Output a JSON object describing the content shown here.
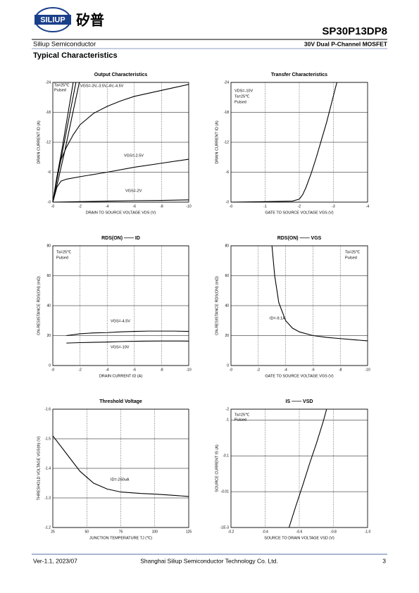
{
  "header": {
    "logo_text": "SILIUP",
    "logo_cn": "矽普",
    "part_number": "SP30P13DP8",
    "company": "Siliup Semiconductor",
    "subtitle": "30V Dual P-Channel MOSFET",
    "section": "Typical Characteristics"
  },
  "footer": {
    "version": "Ver-1.1, 2023/07",
    "company": "Shanghai Siliup Semiconductor Technology Co. Ltd.",
    "page": "3"
  },
  "chart_data": [
    {
      "type": "line",
      "title": "Output Characteristics",
      "x_label": "DRAIN TO SOURCE VOLTAGE   VDS   (V)",
      "y_label": "DRAIN CURRENT   ID   (A)",
      "xlim": [
        0,
        -10
      ],
      "xticks": [
        {
          "value": 0,
          "label": "-0"
        },
        -2,
        -4,
        -6,
        -8,
        -10
      ],
      "ylim": [
        0,
        -24
      ],
      "yticks": [
        {
          "value": 0,
          "label": "-0"
        },
        -6,
        -12,
        -18,
        -24
      ],
      "grid": true,
      "annotations": [
        "Ta=25℃",
        "Pulsed",
        "VGS=-3V,-3.5V,-4V,-4.5V",
        "VGS=-2.5V",
        "VGS=-2V"
      ],
      "series": [
        {
          "color": "#000000",
          "x": [
            0,
            -0.3,
            -0.7,
            -1.1,
            -1.5
          ],
          "values": [
            0,
            -5,
            -11,
            -17.5,
            -24
          ]
        },
        {
          "color": "#000000",
          "x": [
            0,
            -0.3,
            -0.7,
            -1.2,
            -1.7
          ],
          "values": [
            0,
            -4.5,
            -10,
            -17,
            -24
          ]
        },
        {
          "color": "#000000",
          "x": [
            0,
            -0.4,
            -0.9,
            -1.4,
            -1.95
          ],
          "values": [
            0,
            -4.5,
            -10.5,
            -17,
            -24
          ]
        },
        {
          "color": "#000000",
          "x": [
            0,
            -0.3,
            -0.6,
            -1,
            -1.5,
            -2,
            -3,
            -4,
            -5,
            -6,
            -7,
            -8,
            -9,
            -10
          ],
          "values": [
            0,
            -5,
            -8.5,
            -11,
            -13.5,
            -15.5,
            -17.8,
            -19.2,
            -20.3,
            -21.2,
            -21.8,
            -22.4,
            -23,
            -23.6
          ]
        },
        {
          "color": "#000000",
          "x": [
            0,
            -0.3,
            -0.6,
            -1,
            -2,
            -4,
            -6,
            -8,
            -10
          ],
          "values": [
            0,
            -3,
            -4.2,
            -4.6,
            -5.1,
            -6,
            -7,
            -7.8,
            -8.6
          ]
        },
        {
          "color": "#000000",
          "x": [
            0,
            -2,
            -4,
            -6,
            -8,
            -10
          ],
          "values": [
            0,
            -0.1,
            -0.2,
            -0.3,
            -0.35,
            -0.45
          ]
        }
      ]
    },
    {
      "type": "line",
      "title": "Transfer Characteristics",
      "x_label": "GATE TO SOURCE VOLTAGE   VGS   (V)",
      "y_label": "DRAIN CURRENT   ID   (A)",
      "xlim": [
        0,
        -4
      ],
      "xticks": [
        {
          "value": 0,
          "label": "-0"
        },
        -1,
        -2,
        -3,
        -4
      ],
      "ylim": [
        0,
        -24
      ],
      "yticks": [
        {
          "value": 0,
          "label": "-0"
        },
        -6,
        -12,
        -18,
        -24
      ],
      "grid": true,
      "annotations": [
        "VDS=-10V",
        "Ta=25℃",
        "Pulsed"
      ],
      "series": [
        {
          "color": "#000000",
          "x": [
            0,
            -1,
            -1.8,
            -2,
            -2.1,
            -2.2,
            -2.35,
            -2.5,
            -2.65,
            -2.8,
            -2.95,
            -3.1
          ],
          "values": [
            0,
            -0.1,
            -0.2,
            -0.6,
            -1.5,
            -3,
            -5.8,
            -9,
            -12.5,
            -16,
            -20,
            -24
          ]
        }
      ]
    },
    {
      "type": "line",
      "title": "RDS(ON) —— ID",
      "x_label": "DRAIN CURRENT   ID   (A)",
      "y_label": "ON-RESISTANCE   RDS(ON)   (mΩ)",
      "xlim": [
        0,
        -10
      ],
      "xticks": [
        {
          "value": 0,
          "label": "-0"
        },
        -2,
        -4,
        -6,
        -8,
        -10
      ],
      "ylim": [
        0,
        80
      ],
      "yticks": [
        0,
        20,
        40,
        60,
        80
      ],
      "grid": true,
      "annotations": [
        "Ta=25℃",
        "Pulsed",
        "VGS=-4.5V",
        "VGS=-10V"
      ],
      "series": [
        {
          "color": "#000000",
          "x": [
            -1,
            -2,
            -3,
            -4,
            -5,
            -6,
            -7,
            -8,
            -9,
            -10
          ],
          "values": [
            20,
            21.2,
            21.8,
            22,
            22.5,
            22.8,
            23,
            23,
            23,
            22.8
          ]
        },
        {
          "color": "#000000",
          "x": [
            -1,
            -2,
            -3,
            -4,
            -5,
            -6,
            -7,
            -8,
            -9,
            -10
          ],
          "values": [
            15,
            15.3,
            15.5,
            15.7,
            16,
            16.2,
            16.3,
            16.4,
            16.4,
            16.3
          ]
        }
      ]
    },
    {
      "type": "line",
      "title": "RDS(ON) —— VGS",
      "x_label": "GATE TO SOURCE VOLTAGE   VGS   (V)",
      "y_label": "ON-RESISTANCE   RDS(ON)   (mΩ)",
      "xlim": [
        0,
        -10
      ],
      "xticks": [
        {
          "value": 0,
          "label": "-0"
        },
        -2,
        -4,
        -6,
        -8,
        -10
      ],
      "ylim": [
        0,
        80
      ],
      "yticks": [
        0,
        20,
        40,
        60,
        80
      ],
      "grid": true,
      "annotations": [
        "Ta=25℃",
        "Pulsed",
        "ID=-9.1A"
      ],
      "series": [
        {
          "color": "#000000",
          "x": [
            -3,
            -3.2,
            -3.5,
            -4,
            -4.5,
            -5,
            -6,
            -7,
            -8,
            -9,
            -10
          ],
          "values": [
            80,
            60,
            42,
            30,
            25,
            22.5,
            20,
            18.8,
            18,
            17.2,
            16.5
          ]
        }
      ]
    },
    {
      "type": "line",
      "title": "Threshold Voltage",
      "x_label": "JUNCTION TEMPERATURE   TJ   (℃)",
      "y_label": "THRESHOLD VOLTAGE   VGS(th)   (V)",
      "xlim": [
        25,
        125
      ],
      "xticks": [
        25,
        50,
        75,
        100,
        125
      ],
      "ylim": [
        -1.2,
        -1.6
      ],
      "yticks": [
        -1.2,
        -1.3,
        -1.4,
        -1.5,
        -1.6
      ],
      "grid": true,
      "annotations": [
        "ID=-250uA"
      ],
      "series": [
        {
          "color": "#000000",
          "x": [
            25,
            35,
            45,
            55,
            65,
            75,
            90,
            100,
            110,
            125
          ],
          "values": [
            -1.51,
            -1.45,
            -1.39,
            -1.35,
            -1.33,
            -1.32,
            -1.315,
            -1.313,
            -1.31,
            -1.305
          ]
        }
      ]
    },
    {
      "type": "line",
      "title": "IS —— VSD",
      "x_label": "SOURCE TO DRAIN VOLTAGE   VSD   (V)",
      "y_label": "SOURCE CURRENT   IS   (A)",
      "xlim": [
        -0.2,
        -1
      ],
      "xticks": [
        -0.2,
        -0.4,
        -0.6,
        -0.8,
        {
          "value": -1,
          "label": "-1.0"
        }
      ],
      "ylim": [
        -0.001,
        -2
      ],
      "log_scale": true,
      "yticks": [
        {
          "value": -0.001,
          "label": "-1E-3"
        },
        -0.01,
        -0.1,
        -1,
        -2
      ],
      "grid": true,
      "annotations": [
        "Ta=25℃",
        "Pulsed"
      ],
      "series": [
        {
          "color": "#000000",
          "x": [
            -0.54,
            -0.58,
            -0.62,
            -0.66,
            -0.7,
            -0.74,
            -0.76
          ],
          "values": [
            -0.001,
            -0.004,
            -0.015,
            -0.06,
            -0.22,
            -0.9,
            -2
          ]
        }
      ]
    }
  ]
}
